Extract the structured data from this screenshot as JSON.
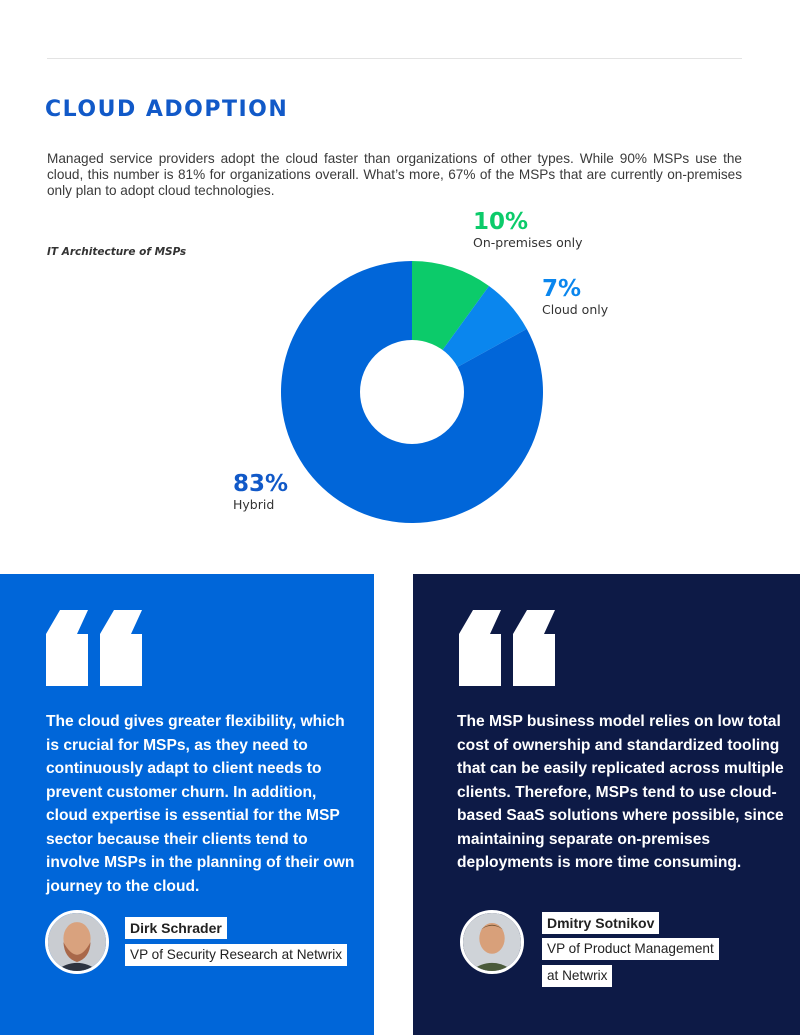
{
  "section": {
    "title": "CLOUD ADOPTION",
    "intro": "Managed service providers adopt the cloud faster than organizations of other types. While 90% MSPs use the cloud, this number is 81% for organizations overall. What’s more, 67% of the MSPs that are currently on-premises only plan to adopt cloud technologies."
  },
  "chart_data": {
    "type": "pie",
    "variant": "donut",
    "title": "IT Architecture of MSPs",
    "slices": [
      {
        "label": "On-premises only",
        "value": 10,
        "display": "10%",
        "color": "#0ccb6a"
      },
      {
        "label": "Cloud only",
        "value": 7,
        "display": "7%",
        "color": "#0a86ee"
      },
      {
        "label": "Hybrid",
        "value": 83,
        "display": "83%",
        "color": "#0166d9"
      }
    ]
  },
  "quotes": [
    {
      "text": "The cloud gives greater flexibility, which is crucial for MSPs, as they need to continuously adapt to client needs to prevent customer churn. In addition, cloud expertise is essential for the MSP sector because their clients tend to involve MSPs in the planning of their own journey to the cloud.",
      "author": "Dirk Schrader",
      "role_line1": "VP of Security Research at Netwrix",
      "panel_color": "#0066d9"
    },
    {
      "text": "The MSP business model relies on low total cost of ownership and standardized tooling that can be easily replicated across multiple clients. Therefore, MSPs tend to use cloud-based SaaS solutions where possible, since maintaining separate on-premises deployments is more time consuming.",
      "author": "Dmitry Sotnikov",
      "role_line1": "VP of Product Management",
      "role_line2": "at Netwrix",
      "panel_color": "#0d1a46"
    }
  ],
  "icons": {
    "quote": "quote-open-icon",
    "avatar": "person-avatar-icon"
  }
}
